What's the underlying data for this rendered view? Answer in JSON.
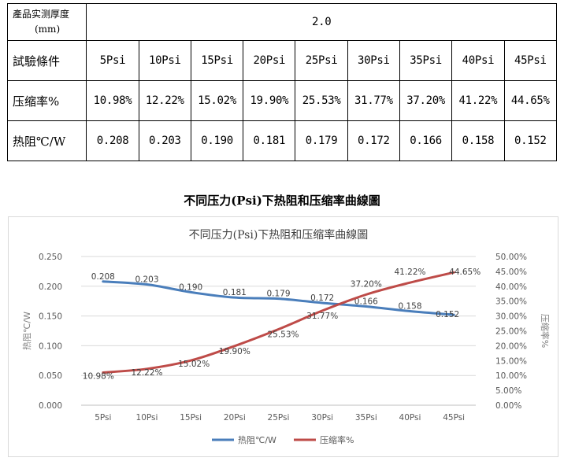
{
  "table": {
    "thickness_label_line1": "產品实测厚度",
    "thickness_label_line2": "(mm)",
    "thickness_value": "2.0",
    "rows": [
      {
        "label": "試驗條件",
        "cells": [
          "5Psi",
          "10Psi",
          "15Psi",
          "20Psi",
          "25Psi",
          "30Psi",
          "35Psi",
          "40Psi",
          "45Psi"
        ]
      },
      {
        "label": "压缩率%",
        "cells": [
          "10.98%",
          "12.22%",
          "15.02%",
          "19.90%",
          "25.53%",
          "31.77%",
          "37.20%",
          "41.22%",
          "44.65%"
        ]
      },
      {
        "label": "热阻℃/W",
        "cells": [
          "0.208",
          "0.203",
          "0.190",
          "0.181",
          "0.179",
          "0.172",
          "0.166",
          "0.158",
          "0.152"
        ]
      }
    ]
  },
  "heading": "不同压力(Psi)下热阻和压缩率曲線圖",
  "chart_data": {
    "type": "line",
    "title": "不同压力(Psi)下热阻和压缩率曲線圖",
    "categories": [
      "5Psi",
      "10Psi",
      "15Psi",
      "20Psi",
      "25Psi",
      "30Psi",
      "35Psi",
      "40Psi",
      "45Psi"
    ],
    "ylabel": "热阻℃/W",
    "y2label": "压缩率%",
    "ylim": [
      0,
      0.25
    ],
    "y2lim": [
      0,
      0.5
    ],
    "yticks": [
      "0.000",
      "0.050",
      "0.100",
      "0.150",
      "0.200",
      "0.250"
    ],
    "y2ticks": [
      "0.00%",
      "5.00%",
      "10.00%",
      "15.00%",
      "20.00%",
      "25.00%",
      "30.00%",
      "35.00%",
      "40.00%",
      "45.00%",
      "50.00%"
    ],
    "legend_position": "bottom",
    "series": [
      {
        "name": "热阻℃/W",
        "axis": "left",
        "color": "#4a7ebb",
        "values": [
          0.208,
          0.203,
          0.19,
          0.181,
          0.179,
          0.172,
          0.166,
          0.158,
          0.152
        ],
        "labels": [
          "0.208",
          "0.203",
          "0.190",
          "0.181",
          "0.179",
          "0.172",
          "0.166",
          "0.158",
          "0.152"
        ]
      },
      {
        "name": "压缩率%",
        "axis": "right",
        "color": "#be4b48",
        "values": [
          0.1098,
          0.1222,
          0.1502,
          0.199,
          0.2553,
          0.3177,
          0.372,
          0.4122,
          0.4465
        ],
        "labels": [
          "10.98%",
          "12.22%",
          "15.02%",
          "19.90%",
          "25.53%",
          "31.77%",
          "37.20%",
          "41.22%",
          "44.65%"
        ]
      }
    ]
  }
}
